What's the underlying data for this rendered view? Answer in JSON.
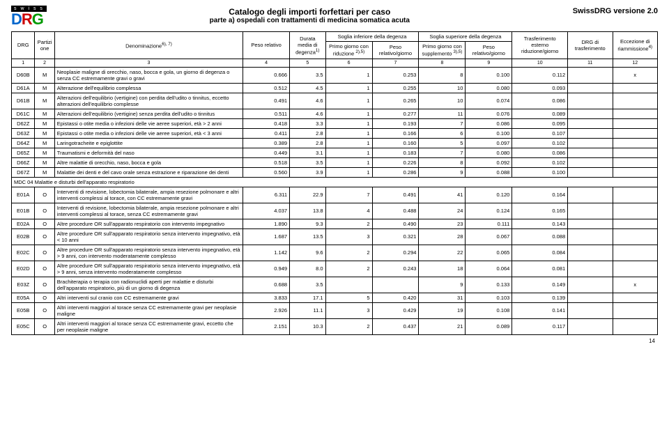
{
  "header": {
    "swiss_bar": "s w i s s",
    "logo_d": "D",
    "logo_r": "R",
    "logo_g": "G",
    "title_main": "Catalogo degli importi forfettari per caso",
    "title_sub": "parte a) ospedali con trattamenti di medicina somatica acuta",
    "version": "SwissDRG versione 2.0"
  },
  "thead": {
    "drg": "DRG",
    "partizione": "Partizi one",
    "denom": "Denominazione",
    "denom_sup": "6), 7)",
    "peso_rel": "Peso relativo",
    "durata": "Durata media di degenza",
    "durata_sup": "1)",
    "soglia_inf": "Soglia inferiore della degenza",
    "soglia_sup": "Soglia superiore della degenza",
    "primo_rid": "Primo giorno con riduzione",
    "primo_rid_sup": "2),5)",
    "peso_rg": "Peso relativo/giorno",
    "primo_supp": "Primo giorno con supplemento",
    "primo_supp_sup": "3),5)",
    "trasf": "Trasferimento esterno riduzione/giorno",
    "drg_di": "DRG di trasferimento",
    "ecc": "Eccezione di riammissione",
    "ecc_sup": "4)"
  },
  "index_row": [
    "1",
    "2",
    "3",
    "4",
    "5",
    "6",
    "7",
    "8",
    "9",
    "10",
    "11",
    "12"
  ],
  "section": "MDC 04 Malattie e disturbi dell'apparato respiratorio",
  "rows": [
    {
      "drg": "D60B",
      "p": "M",
      "denom": "Neoplasie maligne di orecchio, naso, bocca e gola, un giorno di degenza o senza CC estremamente gravi o gravi",
      "peso": "0.666",
      "dur": "3.5",
      "c6": "1",
      "c7": "0.253",
      "c8": "8",
      "c9": "0.100",
      "c10": "0.112",
      "c11": "",
      "c12": "x"
    },
    {
      "drg": "D61A",
      "p": "M",
      "denom": "Alterazione dell'equilibrio complessa",
      "peso": "0.512",
      "dur": "4.5",
      "c6": "1",
      "c7": "0.255",
      "c8": "10",
      "c9": "0.080",
      "c10": "0.093",
      "c11": "",
      "c12": ""
    },
    {
      "drg": "D61B",
      "p": "M",
      "denom": "Alterazioni dell'equilibrio (vertigine) con perdita dell'udito o tinnitus, eccetto alterazioni dell'equilibrio complesse",
      "peso": "0.491",
      "dur": "4.6",
      "c6": "1",
      "c7": "0.265",
      "c8": "10",
      "c9": "0.074",
      "c10": "0.086",
      "c11": "",
      "c12": ""
    },
    {
      "drg": "D61C",
      "p": "M",
      "denom": "Alterazioni dell'equilibrio (vertigine) senza perdita dell'udito o tinnitus",
      "peso": "0.511",
      "dur": "4.6",
      "c6": "1",
      "c7": "0.277",
      "c8": "11",
      "c9": "0.076",
      "c10": "0.089",
      "c11": "",
      "c12": ""
    },
    {
      "drg": "D62Z",
      "p": "M",
      "denom": "Epistassi o otite media o infezioni delle vie aeree superiori, età > 2 anni",
      "peso": "0.418",
      "dur": "3.3",
      "c6": "1",
      "c7": "0.193",
      "c8": "7",
      "c9": "0.086",
      "c10": "0.095",
      "c11": "",
      "c12": ""
    },
    {
      "drg": "D63Z",
      "p": "M",
      "denom": "Epistassi o otite media o infezioni delle vie aeree superiori, età < 3 anni",
      "peso": "0.411",
      "dur": "2.8",
      "c6": "1",
      "c7": "0.166",
      "c8": "6",
      "c9": "0.100",
      "c10": "0.107",
      "c11": "",
      "c12": ""
    },
    {
      "drg": "D64Z",
      "p": "M",
      "denom": "Laringotracheite e epiglottite",
      "peso": "0.389",
      "dur": "2.8",
      "c6": "1",
      "c7": "0.160",
      "c8": "5",
      "c9": "0.097",
      "c10": "0.102",
      "c11": "",
      "c12": ""
    },
    {
      "drg": "D65Z",
      "p": "M",
      "denom": "Traumatismi e deformità del naso",
      "peso": "0.449",
      "dur": "3.1",
      "c6": "1",
      "c7": "0.183",
      "c8": "7",
      "c9": "0.080",
      "c10": "0.086",
      "c11": "",
      "c12": ""
    },
    {
      "drg": "D66Z",
      "p": "M",
      "denom": "Altre malattie di orecchio, naso, bocca e gola",
      "peso": "0.518",
      "dur": "3.5",
      "c6": "1",
      "c7": "0.226",
      "c8": "8",
      "c9": "0.092",
      "c10": "0.102",
      "c11": "",
      "c12": ""
    },
    {
      "drg": "D67Z",
      "p": "M",
      "denom": "Malattie dei denti e del cavo orale senza estrazione e riparazione dei denti",
      "peso": "0.560",
      "dur": "3.9",
      "c6": "1",
      "c7": "0.286",
      "c8": "9",
      "c9": "0.088",
      "c10": "0.100",
      "c11": "",
      "c12": ""
    },
    {
      "section": true
    },
    {
      "drg": "E01A",
      "p": "O",
      "denom": "Interventi di revisione, lobectomia bilaterale, ampia resezione polmonare e altri interventi complessi al torace, con CC estremamente gravi",
      "peso": "6.311",
      "dur": "22.9",
      "c6": "7",
      "c7": "0.491",
      "c8": "41",
      "c9": "0.120",
      "c10": "0.164",
      "c11": "",
      "c12": ""
    },
    {
      "drg": "E01B",
      "p": "O",
      "denom": "Interventi di revisione, lobectomia bilaterale, ampia resezione polmonare e altri interventi complessi al torace, senza CC estremamente gravi",
      "peso": "4.037",
      "dur": "13.8",
      "c6": "4",
      "c7": "0.488",
      "c8": "24",
      "c9": "0.124",
      "c10": "0.165",
      "c11": "",
      "c12": ""
    },
    {
      "drg": "E02A",
      "p": "O",
      "denom": "Altre procedure OR sull'apparato respiratorio con intervento impegnativo",
      "peso": "1.890",
      "dur": "9.3",
      "c6": "2",
      "c7": "0.490",
      "c8": "23",
      "c9": "0.111",
      "c10": "0.143",
      "c11": "",
      "c12": ""
    },
    {
      "drg": "E02B",
      "p": "O",
      "denom": "Altre procedure OR sull'apparato respiratorio senza intervento impegnativo, età < 10 anni",
      "peso": "1.687",
      "dur": "13.5",
      "c6": "3",
      "c7": "0.321",
      "c8": "28",
      "c9": "0.067",
      "c10": "0.088",
      "c11": "",
      "c12": ""
    },
    {
      "drg": "E02C",
      "p": "O",
      "denom": "Altre procedure OR sull'apparato respiratorio senza intervento impegnativo, età > 9 anni, con intervento moderatamente complesso",
      "peso": "1.142",
      "dur": "9.6",
      "c6": "2",
      "c7": "0.294",
      "c8": "22",
      "c9": "0.065",
      "c10": "0.084",
      "c11": "",
      "c12": ""
    },
    {
      "drg": "E02D",
      "p": "O",
      "denom": "Altre procedure OR sull'apparato respiratorio senza intervento impegnativo, età > 9 anni, senza intervento moderatamente complesso",
      "peso": "0.949",
      "dur": "8.0",
      "c6": "2",
      "c7": "0.243",
      "c8": "18",
      "c9": "0.064",
      "c10": "0.081",
      "c11": "",
      "c12": ""
    },
    {
      "drg": "E03Z",
      "p": "O",
      "denom": "Brachiterapia o terapia con radionuclidi aperti per malattie e disturbi dell'apparato respiratorio, più di un giorno di degenza",
      "peso": "0.688",
      "dur": "3.5",
      "c6": "",
      "c7": "",
      "c8": "9",
      "c9": "0.133",
      "c10": "0.149",
      "c11": "",
      "c12": "x"
    },
    {
      "drg": "E05A",
      "p": "O",
      "denom": "Altri interventi sul cranio con CC estremamente gravi",
      "peso": "3.833",
      "dur": "17.1",
      "c6": "5",
      "c7": "0.420",
      "c8": "31",
      "c9": "0.103",
      "c10": "0.139",
      "c11": "",
      "c12": ""
    },
    {
      "drg": "E05B",
      "p": "O",
      "denom": "Altri interventi maggiori al torace senza CC estremamente gravi per neoplasie maligne",
      "peso": "2.926",
      "dur": "11.1",
      "c6": "3",
      "c7": "0.429",
      "c8": "19",
      "c9": "0.108",
      "c10": "0.141",
      "c11": "",
      "c12": ""
    },
    {
      "drg": "E05C",
      "p": "O",
      "denom": "Altri interventi maggiori al torace senza CC estremamente gravi, eccetto che per neoplasie maligne",
      "peso": "2.151",
      "dur": "10.3",
      "c6": "2",
      "c7": "0.437",
      "c8": "21",
      "c9": "0.089",
      "c10": "0.117",
      "c11": "",
      "c12": ""
    }
  ],
  "page_num": "14"
}
